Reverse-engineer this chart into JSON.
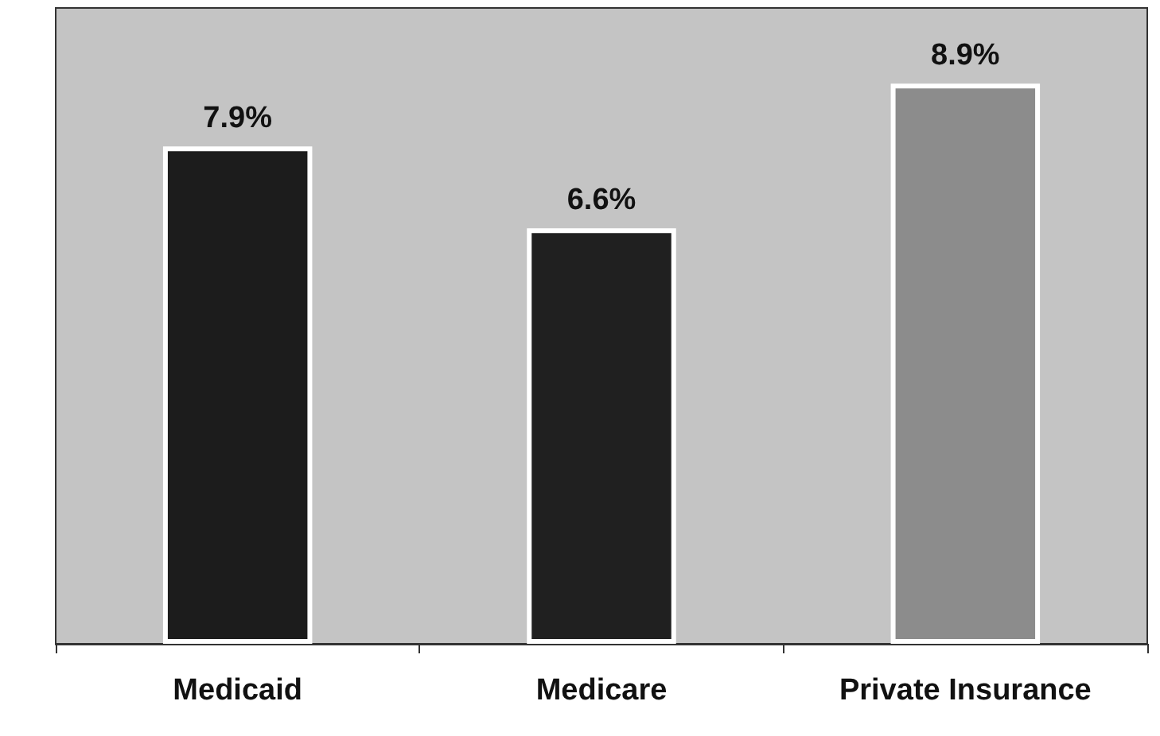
{
  "chart_data": {
    "type": "bar",
    "categories": [
      "Medicaid",
      "Medicare",
      "Private Insurance"
    ],
    "values": [
      7.9,
      6.6,
      8.9
    ],
    "value_labels": [
      "7.9%",
      "6.6%",
      "8.9%"
    ],
    "colors": [
      "#1c1c1c",
      "#202020",
      "#8c8c8c"
    ]
  }
}
